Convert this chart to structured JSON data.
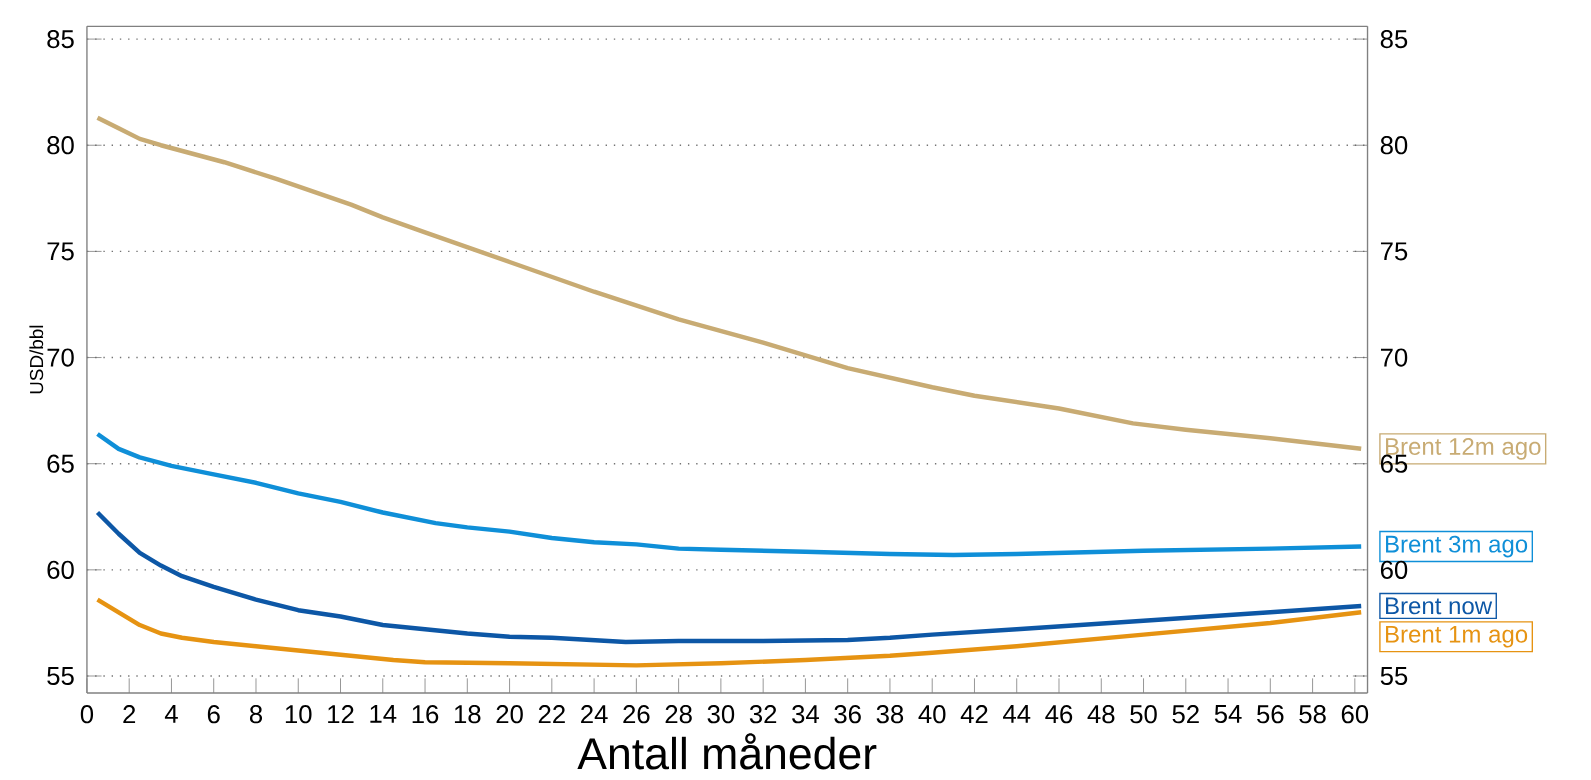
{
  "chart_data": {
    "type": "line",
    "xlabel": "Antall måneder",
    "ylabel": "USD/bbl",
    "xlim": [
      0,
      60.6
    ],
    "xticks": [
      0,
      2,
      4,
      6,
      8,
      10,
      12,
      14,
      16,
      18,
      20,
      22,
      24,
      26,
      28,
      30,
      32,
      34,
      36,
      38,
      40,
      42,
      44,
      46,
      48,
      50,
      52,
      54,
      56,
      58,
      60
    ],
    "ylim": [
      54.2,
      85.6
    ],
    "yticks": [
      55,
      60,
      65,
      70,
      75,
      80,
      85
    ],
    "y2lim": [
      54.2,
      85.6
    ],
    "y2ticks": [
      55,
      60,
      65,
      70,
      75,
      80,
      85
    ],
    "grid": "y",
    "legend": false,
    "line_style": "solid",
    "marker": "none",
    "series": [
      {
        "name": "Brent 12m ago",
        "color": "#c8ab73",
        "x": [
          0.5,
          1.5,
          2.5,
          3.5,
          6.5,
          9,
          12.5,
          14,
          16,
          20,
          24,
          28,
          32,
          36,
          40,
          42,
          46,
          49.5,
          52,
          56,
          60.3
        ],
        "values": [
          81.3,
          80.8,
          80.3,
          80.0,
          79.2,
          78.4,
          77.2,
          76.6,
          75.9,
          74.5,
          73.1,
          71.8,
          70.7,
          69.5,
          68.6,
          68.2,
          67.6,
          66.9,
          66.6,
          66.2,
          65.7
        ]
      },
      {
        "name": "Brent 3m ago",
        "color": "#0f8fd8",
        "x": [
          0.5,
          1.5,
          2.5,
          4,
          6,
          8,
          10,
          12,
          14,
          16.5,
          18,
          20,
          22,
          24,
          26,
          28,
          30,
          34,
          38,
          41,
          44,
          50,
          56,
          60.3
        ],
        "values": [
          66.4,
          65.7,
          65.3,
          64.9,
          64.5,
          64.1,
          63.6,
          63.2,
          62.7,
          62.2,
          62.0,
          61.8,
          61.5,
          61.3,
          61.2,
          61.0,
          60.95,
          60.85,
          60.75,
          60.7,
          60.75,
          60.9,
          61.0,
          61.1
        ]
      },
      {
        "name": "Brent now",
        "color": "#0d57a6",
        "x": [
          0.5,
          1.5,
          2.5,
          3.5,
          4.5,
          6,
          8,
          10,
          12,
          14,
          16,
          18,
          20,
          22,
          25.5,
          28,
          32,
          36,
          38,
          40,
          44,
          50,
          56,
          60.3
        ],
        "values": [
          62.7,
          61.7,
          60.8,
          60.2,
          59.7,
          59.2,
          58.6,
          58.1,
          57.8,
          57.4,
          57.2,
          57.0,
          56.85,
          56.8,
          56.6,
          56.65,
          56.65,
          56.7,
          56.8,
          56.95,
          57.2,
          57.6,
          58.0,
          58.3
        ]
      },
      {
        "name": "Brent 1m ago",
        "color": "#e69312",
        "x": [
          0.5,
          1.5,
          2.5,
          3.5,
          4.5,
          6,
          8,
          10,
          12,
          14.5,
          16,
          20,
          26,
          30,
          34,
          38,
          40,
          44,
          50,
          56,
          60.3
        ],
        "values": [
          58.6,
          58.0,
          57.4,
          57.0,
          56.8,
          56.6,
          56.4,
          56.2,
          56.0,
          55.75,
          55.65,
          55.6,
          55.5,
          55.6,
          55.75,
          55.95,
          56.1,
          56.4,
          56.95,
          57.5,
          58.0
        ]
      }
    ]
  }
}
